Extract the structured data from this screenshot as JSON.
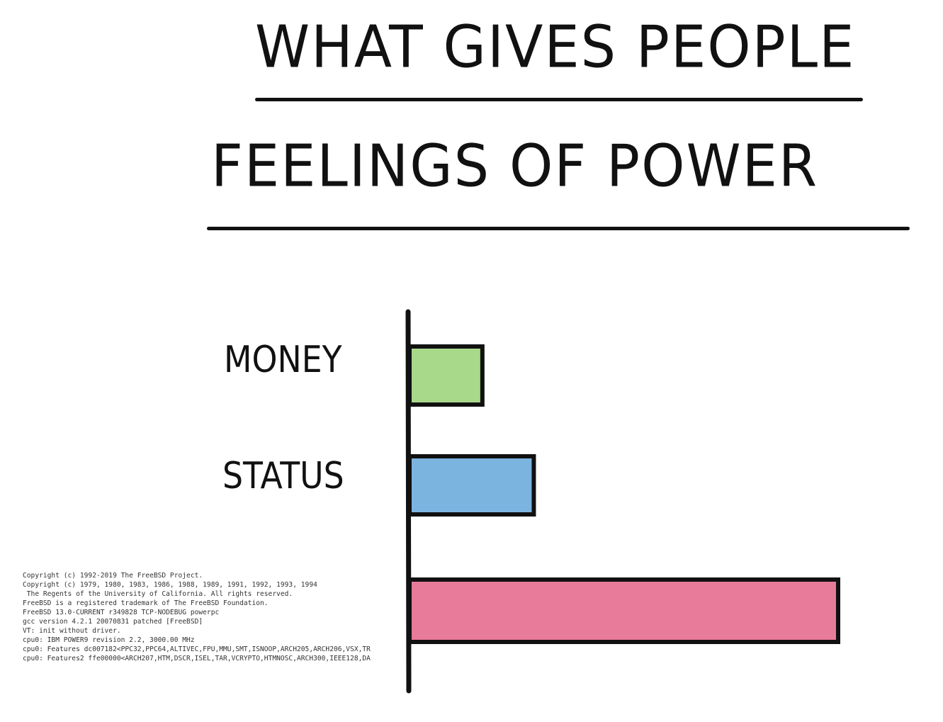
{
  "chart_data": {
    "type": "bar",
    "orientation": "horizontal",
    "title": "WHAT GIVES PEOPLE FEELINGS OF POWER",
    "title_lines": [
      "WHAT GIVES PEOPLE",
      "FEELINGS OF POWER"
    ],
    "categories": [
      "MONEY",
      "STATUS",
      ""
    ],
    "values": [
      17,
      29,
      100
    ],
    "colors": [
      "#a8d88a",
      "#7cb4e0",
      "#e87a9a"
    ],
    "xlabel": "",
    "ylabel": "",
    "xlim": [
      0,
      100
    ],
    "grid": false,
    "legend": "none"
  },
  "boot_log": [
    "Copyright (c) 1992-2019 The FreeBSD Project.",
    "Copyright (c) 1979, 1980, 1983, 1986, 1988, 1989, 1991, 1992, 1993, 1994",
    " The Regents of the University of California. All rights reserved.",
    "FreeBSD is a registered trademark of The FreeBSD Foundation.",
    "FreeBSD 13.0-CURRENT r349828 TCP-NODEBUG powerpc",
    "gcc version 4.2.1 20070831 patched [FreeBSD]",
    "VT: init without driver.",
    "cpu0: IBM POWER9 revision 2.2, 3000.00 MHz",
    "cpu0: Features dc007182<PPC32,PPC64,ALTIVEC,FPU,MMU,SMT,ISNOOP,ARCH205,ARCH206,VSX,TR",
    "cpu0: Features2 ffe00000<ARCH207,HTM,DSCR,ISEL,TAR,VCRYPTO,HTMNOSC,ARCH300,IEEE128,DA"
  ]
}
